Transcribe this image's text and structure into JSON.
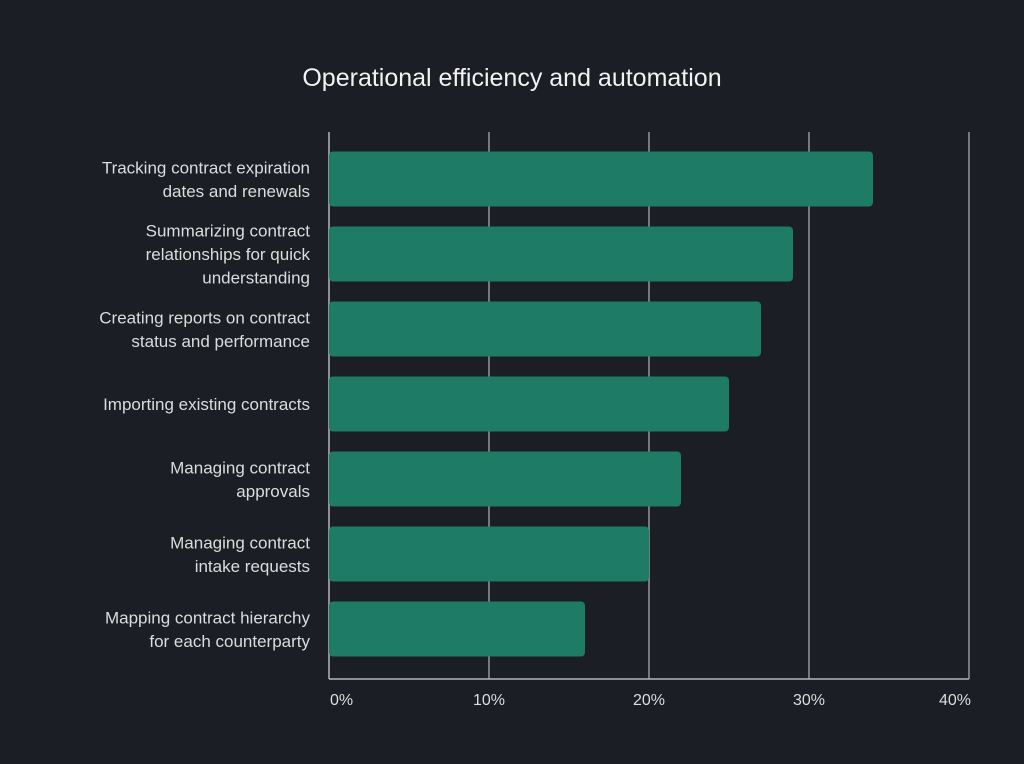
{
  "chart_data": {
    "type": "bar",
    "orientation": "horizontal",
    "title": "Operational efficiency and automation",
    "categories": [
      [
        "Tracking contract expiration",
        "dates and renewals"
      ],
      [
        "Summarizing contract",
        "relationships for quick",
        "understanding"
      ],
      [
        "Creating reports on contract",
        "status and performance"
      ],
      [
        "Importing existing contracts"
      ],
      [
        "Managing contract",
        "approvals"
      ],
      [
        "Managing contract",
        "intake requests"
      ],
      [
        "Mapping contract hierarchy",
        "for each counterparty"
      ]
    ],
    "values": [
      34,
      29,
      27,
      25,
      22,
      20,
      16
    ],
    "xlabel": "",
    "ylabel": "",
    "xlim": [
      0,
      40
    ],
    "xticks": [
      "0%",
      "10%",
      "20%",
      "30%",
      "40%"
    ],
    "grid": true,
    "colors": {
      "background": "#1c1e26",
      "bar": "#1e7b65",
      "grid": "#b5b5b5",
      "text": "#dcdcdc"
    }
  }
}
